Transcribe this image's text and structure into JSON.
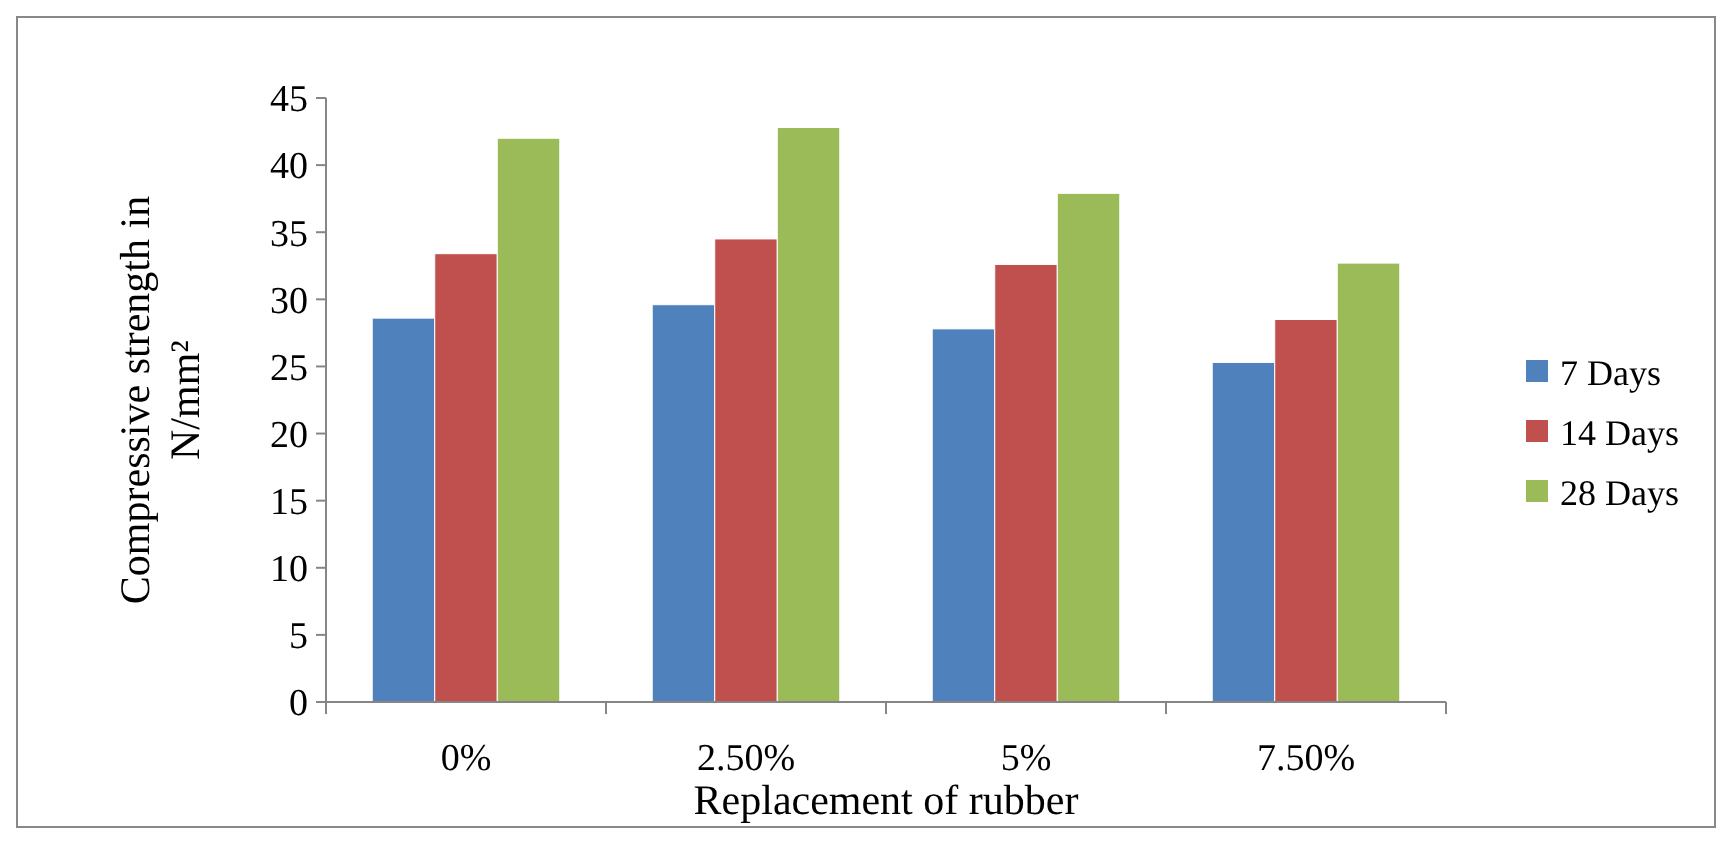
{
  "chart_data": {
    "type": "bar",
    "xlabel": "Replacement of rubber",
    "ylabel": "Compressive strength in N/mm²",
    "categories": [
      "0%",
      "2.50%",
      "5%",
      "7.50%"
    ],
    "series": [
      {
        "name": "7 Days",
        "color": "#4f81bd",
        "values": [
          28.6,
          29.6,
          27.8,
          25.3
        ]
      },
      {
        "name": "14 Days",
        "color": "#c0504d",
        "values": [
          33.4,
          34.5,
          32.6,
          28.5
        ]
      },
      {
        "name": "28 Days",
        "color": "#9bbb59",
        "values": [
          42.0,
          42.8,
          37.9,
          32.7
        ]
      }
    ],
    "ylim": [
      0,
      45
    ],
    "yticks": [
      0,
      5,
      10,
      15,
      20,
      25,
      30,
      35,
      40,
      45
    ],
    "grid": false,
    "legend": "right"
  }
}
